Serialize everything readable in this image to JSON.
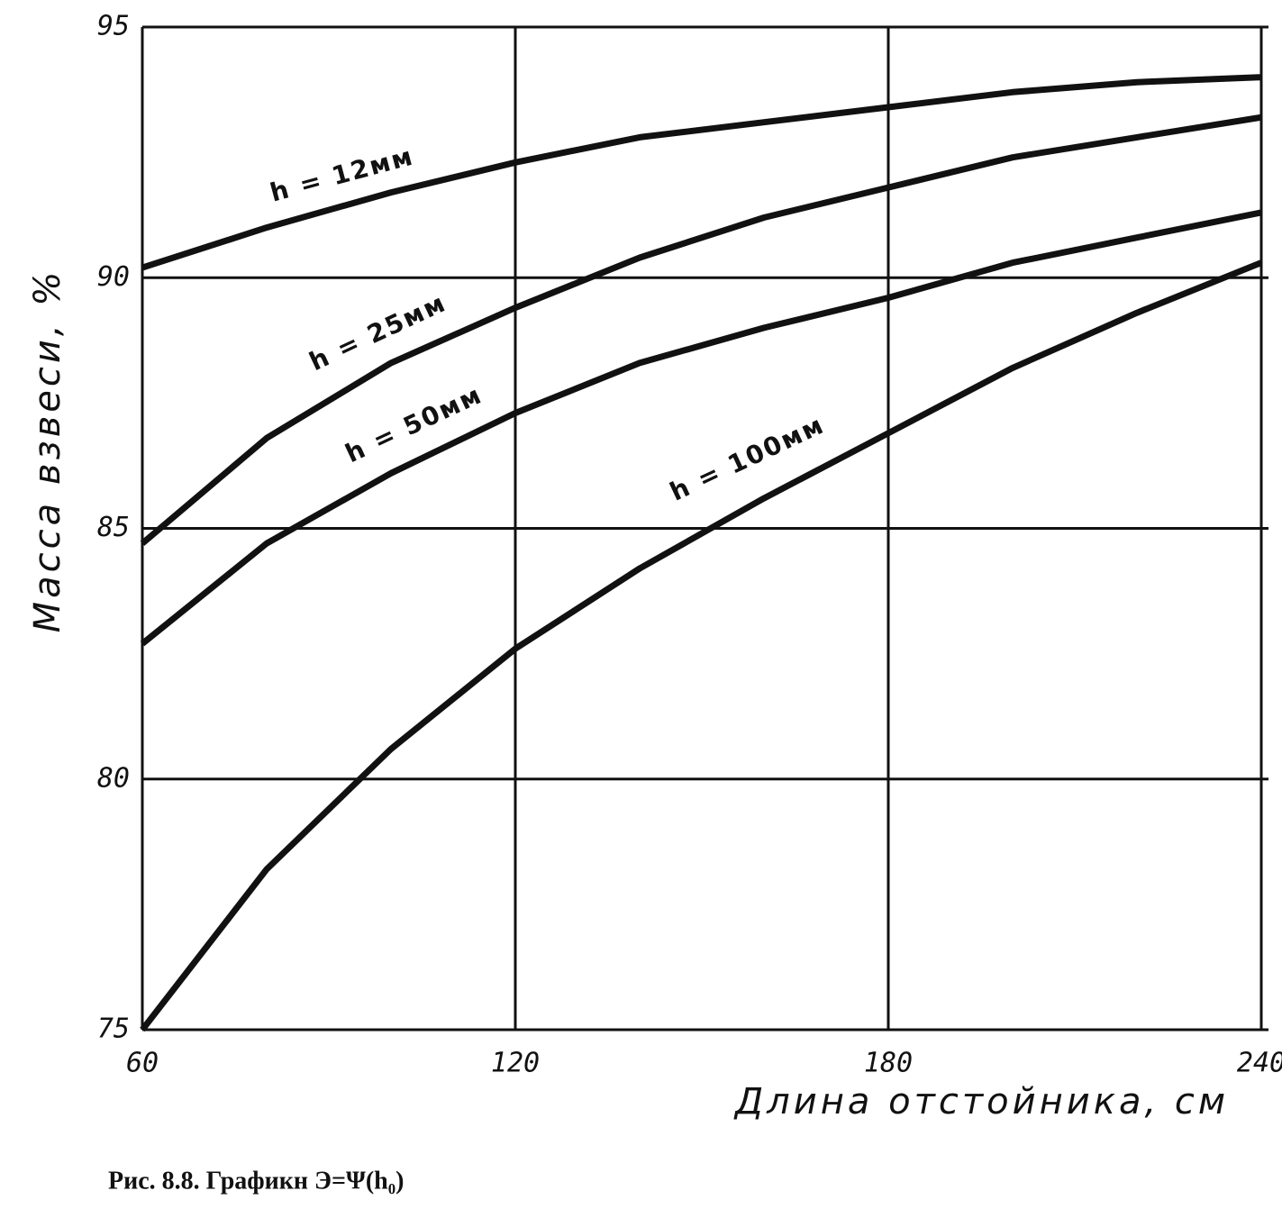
{
  "chart_data": {
    "type": "line",
    "xlabel": "Длина отстойника, см",
    "ylabel": "Масса взвеси, %",
    "caption": "Рис. 8.8. Графикн Э=Ψ(h₀)",
    "x": [
      60,
      80,
      100,
      120,
      140,
      160,
      180,
      200,
      220,
      240
    ],
    "series": [
      {
        "name": "h = 12мм",
        "color": "#111111",
        "values": [
          90.2,
          91.0,
          91.7,
          92.3,
          92.8,
          93.1,
          93.4,
          93.7,
          93.9,
          94.0
        ]
      },
      {
        "name": "h = 25мм",
        "color": "#111111",
        "values": [
          84.7,
          86.8,
          88.3,
          89.4,
          90.4,
          91.2,
          91.8,
          92.4,
          92.8,
          93.2
        ]
      },
      {
        "name": "h = 50мм",
        "color": "#111111",
        "values": [
          82.7,
          84.7,
          86.1,
          87.3,
          88.3,
          89.0,
          89.6,
          90.3,
          90.8,
          91.3
        ]
      },
      {
        "name": "h = 100мм",
        "color": "#111111",
        "values": [
          75.0,
          78.2,
          80.6,
          82.6,
          84.2,
          85.6,
          86.9,
          88.2,
          89.3,
          90.3
        ]
      }
    ],
    "xlim": [
      60,
      240
    ],
    "xticks": [
      60,
      120,
      180,
      240
    ],
    "ylim": [
      75,
      95
    ],
    "yticks": [
      75,
      80,
      85,
      90,
      95
    ],
    "grid": true
  }
}
